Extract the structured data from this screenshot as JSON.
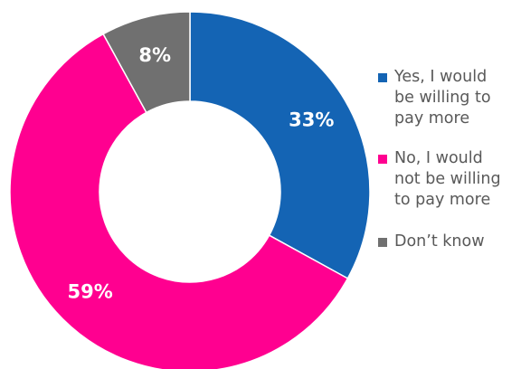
{
  "chart_data": {
    "type": "pie",
    "variant": "donut",
    "categories": [
      "Yes, I would be willing to pay more",
      "No, I would not be willing to pay more",
      "Don’t know"
    ],
    "values": [
      33,
      59,
      8
    ],
    "value_labels": [
      "33%",
      "59%",
      "8%"
    ],
    "colors": [
      "#1464b4",
      "#ff0090",
      "#707070"
    ],
    "start_angle_deg": 0,
    "direction": "clockwise",
    "legend_position": "right"
  },
  "legend": {
    "items": [
      {
        "lines": [
          "Yes, I would",
          "be willing to",
          "pay more"
        ]
      },
      {
        "lines": [
          "No, I would",
          "not be willing",
          "to pay more"
        ]
      },
      {
        "lines": [
          "Don’t know"
        ]
      }
    ]
  }
}
